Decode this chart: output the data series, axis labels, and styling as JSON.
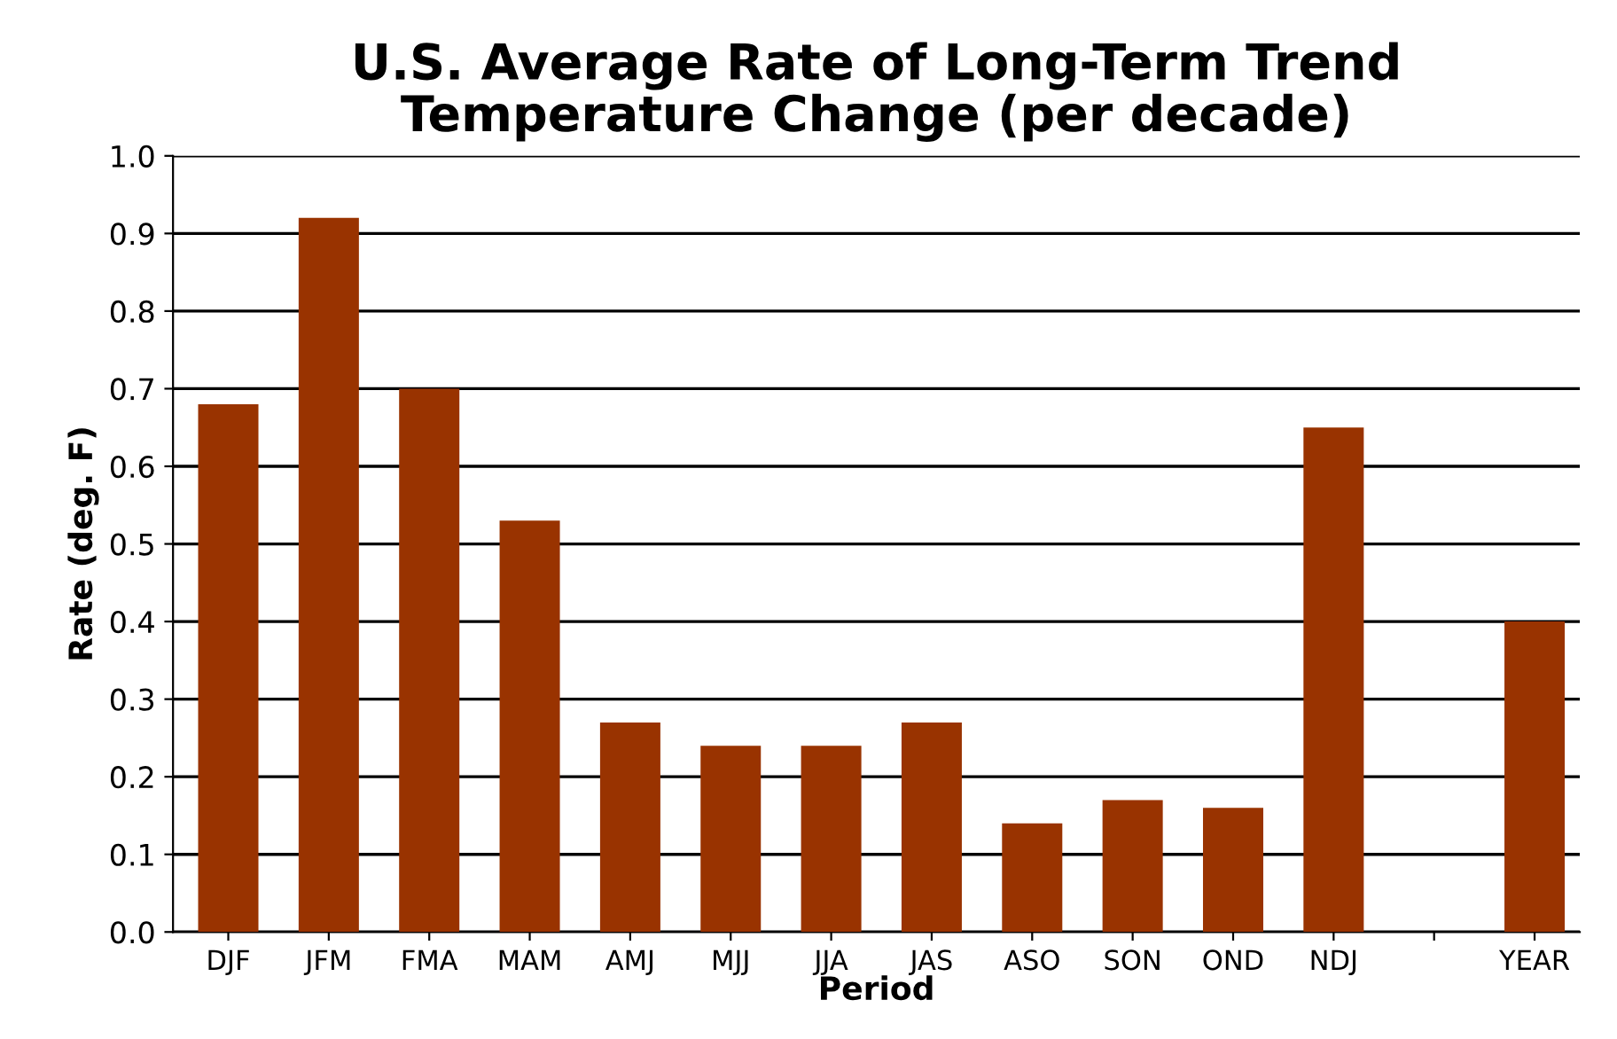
{
  "chart_data": {
    "type": "bar",
    "title": "U.S. Average Rate of Long-Term Trend\nTemperature Change (per decade)",
    "xlabel": "Period",
    "ylabel": "Rate (deg. F)",
    "categories": [
      "DJF",
      "JFM",
      "FMA",
      "MAM",
      "AMJ",
      "MJJ",
      "JJA",
      "JAS",
      "ASO",
      "SON",
      "OND",
      "NDJ",
      null,
      "YEAR"
    ],
    "values": [
      0.68,
      0.92,
      0.7,
      0.53,
      0.27,
      0.24,
      0.24,
      0.27,
      0.14,
      0.17,
      0.16,
      0.65,
      null,
      0.4
    ],
    "color": "#993300",
    "ylim": [
      0,
      1.0
    ],
    "yticks": [
      {
        "value": 0,
        "label": "0.0"
      },
      0.1,
      0.2,
      0.3,
      0.4,
      0.5,
      0.6,
      0.7,
      0.8,
      0.9,
      {
        "value": 1.0,
        "label": "1.0"
      }
    ],
    "grid": "y"
  }
}
